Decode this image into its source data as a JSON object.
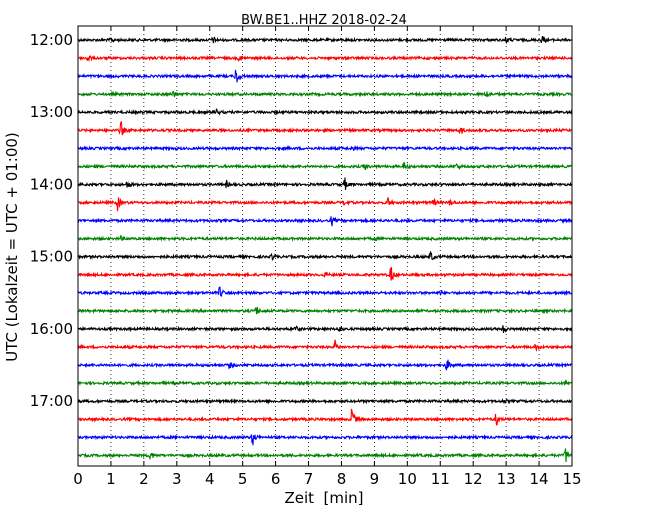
{
  "chart_data": {
    "type": "line",
    "title": "BW.BE1..HHZ 2018-02-24",
    "xlabel": "Zeit  [min]",
    "ylabel": "UTC (Lokalzeit = UTC + 01:00)",
    "xlim": [
      0,
      15
    ],
    "x_ticks": [
      "0",
      "1",
      "2",
      "3",
      "4",
      "5",
      "6",
      "7",
      "8",
      "9",
      "10",
      "11",
      "12",
      "13",
      "14",
      "15"
    ],
    "y_ticks": [
      "12:00",
      "13:00",
      "14:00",
      "15:00",
      "16:00",
      "17:00"
    ],
    "grid_x": true,
    "row_interval_minutes": 15,
    "colors": [
      "#000000",
      "#ff0000",
      "#0000ff",
      "#008000"
    ],
    "traces": [
      {
        "start": "12:00",
        "events": [
          [
            1.0,
            0.3
          ],
          [
            4.1,
            0.3
          ],
          [
            13.0,
            0.3
          ],
          [
            14.1,
            0.5
          ]
        ]
      },
      {
        "start": "12:15",
        "events": [
          [
            0.3,
            0.4
          ],
          [
            4.9,
            0.3
          ]
        ]
      },
      {
        "start": "12:30",
        "events": [
          [
            4.8,
            1.0
          ]
        ]
      },
      {
        "start": "12:45",
        "events": [
          [
            2.9,
            0.4
          ],
          [
            12.4,
            0.4
          ]
        ]
      },
      {
        "start": "13:00",
        "events": [
          [
            4.2,
            0.3
          ]
        ]
      },
      {
        "start": "13:15",
        "events": [
          [
            1.3,
            1.0
          ],
          [
            11.6,
            0.4
          ]
        ]
      },
      {
        "start": "13:30",
        "events": [
          [
            8.3,
            0.2
          ]
        ]
      },
      {
        "start": "13:45",
        "events": [
          [
            8.7,
            0.4
          ],
          [
            9.9,
            0.4
          ],
          [
            11.5,
            0.3
          ]
        ]
      },
      {
        "start": "14:00",
        "events": [
          [
            1.5,
            0.4
          ],
          [
            4.5,
            0.3
          ],
          [
            8.1,
            0.6
          ]
        ]
      },
      {
        "start": "14:15",
        "events": [
          [
            1.2,
            0.7
          ],
          [
            8.1,
            0.4
          ],
          [
            9.4,
            0.5
          ],
          [
            10.8,
            0.3
          ],
          [
            11.3,
            0.3
          ]
        ]
      },
      {
        "start": "14:30",
        "events": [
          [
            7.7,
            0.5
          ]
        ]
      },
      {
        "start": "14:45",
        "events": [
          [
            1.3,
            0.2
          ],
          [
            9.0,
            0.2
          ]
        ]
      },
      {
        "start": "15:00",
        "events": [
          [
            5.9,
            0.3
          ],
          [
            10.7,
            0.6
          ]
        ]
      },
      {
        "start": "15:15",
        "events": [
          [
            7.5,
            0.2
          ],
          [
            9.5,
            0.9
          ]
        ]
      },
      {
        "start": "15:30",
        "events": [
          [
            4.3,
            0.6
          ],
          [
            11.0,
            0.2
          ]
        ]
      },
      {
        "start": "15:45",
        "events": [
          [
            5.4,
            0.5
          ]
        ]
      },
      {
        "start": "16:00",
        "events": [
          [
            6.6,
            0.3
          ],
          [
            7.9,
            0.4
          ],
          [
            12.9,
            0.4
          ]
        ]
      },
      {
        "start": "16:15",
        "events": [
          [
            7.8,
            0.6
          ],
          [
            13.9,
            0.3
          ]
        ]
      },
      {
        "start": "16:30",
        "events": [
          [
            4.6,
            0.3
          ],
          [
            11.2,
            0.7
          ]
        ]
      },
      {
        "start": "16:45",
        "events": [
          [
            14.8,
            0.3
          ]
        ]
      },
      {
        "start": "17:00",
        "events": [
          [
            12.9,
            0.2
          ]
        ]
      },
      {
        "start": "17:15",
        "events": [
          [
            8.3,
            1.5
          ],
          [
            12.7,
            0.7
          ]
        ]
      },
      {
        "start": "17:30",
        "events": [
          [
            5.3,
            0.8
          ]
        ]
      },
      {
        "start": "17:45",
        "events": [
          [
            2.2,
            0.5
          ],
          [
            14.8,
            0.8
          ]
        ]
      }
    ]
  }
}
